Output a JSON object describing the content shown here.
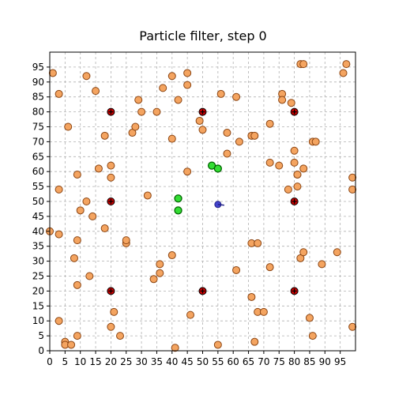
{
  "chart_data": {
    "type": "scatter",
    "title": "Particle filter, step 0",
    "xlabel": "",
    "ylabel": "",
    "xlim": [
      0,
      100
    ],
    "ylim": [
      0,
      100
    ],
    "xticks": [
      "0",
      "5",
      "10",
      "15",
      "20",
      "25",
      "30",
      "35",
      "40",
      "45",
      "50",
      "55",
      "60",
      "65",
      "70",
      "75",
      "80",
      "85",
      "90",
      "95"
    ],
    "yticks": [
      "0",
      "5",
      "10",
      "15",
      "20",
      "25",
      "30",
      "35",
      "40",
      "45",
      "50",
      "55",
      "60",
      "65",
      "70",
      "75",
      "80",
      "85",
      "90",
      "95"
    ],
    "grid": true,
    "legend": "none",
    "series": [
      {
        "role": "particles",
        "color": "#f4a460",
        "edge": "#8b4513",
        "points": [
          [
            1,
            93
          ],
          [
            3,
            54
          ],
          [
            3,
            39
          ],
          [
            3,
            10
          ],
          [
            3,
            86
          ],
          [
            5,
            3
          ],
          [
            5,
            2
          ],
          [
            6,
            75
          ],
          [
            7,
            2
          ],
          [
            8,
            31
          ],
          [
            9,
            59
          ],
          [
            9,
            22
          ],
          [
            9,
            37
          ],
          [
            9,
            5
          ],
          [
            10,
            47
          ],
          [
            12,
            92
          ],
          [
            12,
            50
          ],
          [
            13,
            25
          ],
          [
            14,
            45
          ],
          [
            15,
            87
          ],
          [
            16,
            61
          ],
          [
            18,
            72
          ],
          [
            18,
            41
          ],
          [
            20,
            62
          ],
          [
            20,
            58
          ],
          [
            20,
            8
          ],
          [
            21,
            13
          ],
          [
            23,
            5
          ],
          [
            25,
            36
          ],
          [
            25,
            37
          ],
          [
            27,
            73
          ],
          [
            28,
            75
          ],
          [
            29,
            84
          ],
          [
            30,
            80
          ],
          [
            32,
            52
          ],
          [
            34,
            24
          ],
          [
            35,
            80
          ],
          [
            36,
            29
          ],
          [
            36,
            26
          ],
          [
            37,
            88
          ],
          [
            40,
            92
          ],
          [
            40,
            71
          ],
          [
            40,
            32
          ],
          [
            41,
            1
          ],
          [
            42,
            84
          ],
          [
            45,
            93
          ],
          [
            45,
            60
          ],
          [
            45,
            89
          ],
          [
            46,
            12
          ],
          [
            49,
            77
          ],
          [
            50,
            74
          ],
          [
            55,
            2
          ],
          [
            56,
            86
          ],
          [
            58,
            66
          ],
          [
            58,
            73
          ],
          [
            61,
            85
          ],
          [
            61,
            27
          ],
          [
            62,
            70
          ],
          [
            66,
            36
          ],
          [
            66,
            18
          ],
          [
            66,
            72
          ],
          [
            67,
            72
          ],
          [
            67,
            3
          ],
          [
            68,
            36
          ],
          [
            68,
            13
          ],
          [
            70,
            13
          ],
          [
            72,
            63
          ],
          [
            72,
            76
          ],
          [
            72,
            28
          ],
          [
            75,
            62
          ],
          [
            76,
            86
          ],
          [
            76,
            84
          ],
          [
            78,
            54
          ],
          [
            79,
            83
          ],
          [
            80,
            63
          ],
          [
            80,
            67
          ],
          [
            81,
            59
          ],
          [
            81,
            59
          ],
          [
            81,
            55
          ],
          [
            82,
            96
          ],
          [
            82,
            31
          ],
          [
            83,
            96
          ],
          [
            83,
            61
          ],
          [
            83,
            33
          ],
          [
            85,
            11
          ],
          [
            86,
            70
          ],
          [
            86,
            5
          ],
          [
            87,
            70
          ],
          [
            89,
            29
          ],
          [
            94,
            33
          ],
          [
            96,
            93
          ],
          [
            97,
            96
          ],
          [
            99,
            58
          ],
          [
            99,
            54
          ],
          [
            99,
            8
          ],
          [
            0,
            40
          ]
        ]
      },
      {
        "role": "landmarks",
        "color": "#cc0000",
        "edge": "#000000",
        "points": [
          [
            20,
            80
          ],
          [
            50,
            80
          ],
          [
            80,
            80
          ],
          [
            20,
            50
          ],
          [
            80,
            50
          ],
          [
            20,
            20
          ],
          [
            50,
            20
          ],
          [
            80,
            20
          ]
        ]
      },
      {
        "role": "estimate",
        "color": "#33dd33",
        "edge": "#006600",
        "points": [
          [
            53,
            62
          ],
          [
            55,
            61
          ],
          [
            42,
            51
          ],
          [
            42,
            47
          ]
        ]
      },
      {
        "role": "robot",
        "color": "#4444cc",
        "edge": "#222288",
        "points": [
          [
            55,
            49
          ]
        ]
      }
    ]
  }
}
